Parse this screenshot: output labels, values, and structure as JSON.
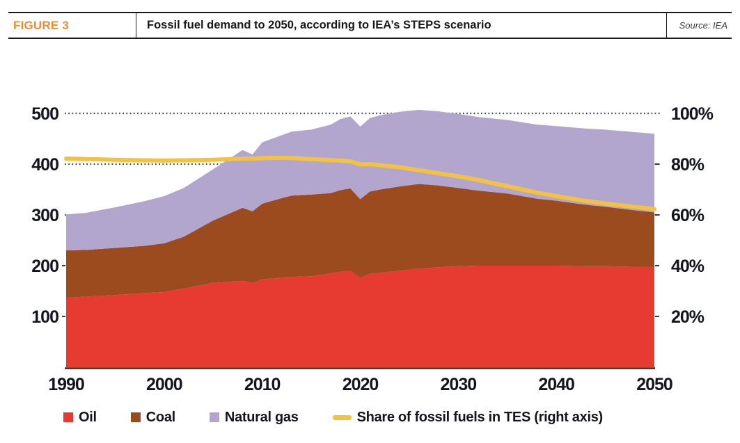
{
  "header": {
    "figure_label": "FIGURE 3",
    "title": "Fossil fuel demand to 2050, according to IEA’s STEPS scenario",
    "source": "Source: IEA"
  },
  "colors": {
    "oil": "#E73A31",
    "coal": "#9C4B1E",
    "gas": "#B3A6CE",
    "share_line": "#F4C243",
    "figure_label": "#F08A2E",
    "grid": "#47474F",
    "axis_text": "#15151F",
    "baseline": "#4A1B10",
    "tick": "#3A3A3A"
  },
  "legend": [
    {
      "label": "Oil",
      "color_key": "oil",
      "swatch": "square"
    },
    {
      "label": "Coal",
      "color_key": "coal",
      "swatch": "square"
    },
    {
      "label": "Natural gas",
      "color_key": "gas",
      "swatch": "square"
    },
    {
      "label": "Share of fossil fuels in TES (right axis)",
      "color_key": "share_line",
      "swatch": "line"
    }
  ],
  "chart_data": {
    "type": "area",
    "stacked": true,
    "title": "Fossil fuel demand to 2050, according to IEA's STEPS scenario",
    "xlabel": "",
    "ylabel": "",
    "x_min": 1990,
    "x_max": 2050,
    "x": [
      1990,
      1992,
      1995,
      1998,
      2000,
      2002,
      2005,
      2008,
      2009,
      2010,
      2012,
      2013,
      2015,
      2017,
      2018,
      2019,
      2020,
      2021,
      2022,
      2024,
      2026,
      2028,
      2030,
      2032,
      2035,
      2038,
      2040,
      2043,
      2045,
      2048,
      2050
    ],
    "series": [
      {
        "name": "Oil",
        "color_key": "oil",
        "values": [
          137,
          139,
          142,
          146,
          148,
          155,
          166,
          170,
          166,
          173,
          176,
          178,
          179,
          185,
          188,
          190,
          176,
          184,
          186,
          190,
          194,
          197,
          199,
          200,
          200,
          200,
          200,
          199,
          199,
          198,
          198
        ]
      },
      {
        "name": "Coal",
        "color_key": "coal",
        "values": [
          93,
          92,
          93,
          93,
          96,
          102,
          123,
          144,
          141,
          149,
          157,
          160,
          161,
          158,
          161,
          162,
          155,
          162,
          164,
          166,
          167,
          161,
          154,
          148,
          142,
          132,
          128,
          121,
          117,
          111,
          107
        ]
      },
      {
        "name": "Natural gas",
        "color_key": "gas",
        "values": [
          71,
          73,
          80,
          88,
          93,
          96,
          101,
          114,
          112,
          121,
          124,
          126,
          128,
          135,
          140,
          142,
          143,
          145,
          146,
          147,
          146,
          146,
          146,
          145,
          145,
          146,
          147,
          150,
          152,
          154,
          155
        ]
      }
    ],
    "line_series": {
      "name": "Share of fossil fuels in TES (right axis)",
      "axis": "right",
      "color_key": "share_line",
      "values": [
        82.2,
        82.0,
        81.7,
        81.5,
        81.4,
        81.5,
        81.7,
        82.2,
        82.2,
        82.4,
        82.5,
        82.4,
        82.0,
        81.6,
        81.4,
        81.1,
        79.9,
        80.0,
        79.6,
        78.8,
        77.6,
        76.4,
        75.2,
        73.8,
        71.3,
        68.8,
        67.4,
        65.5,
        64.5,
        63.2,
        62.3
      ]
    },
    "left_axis": {
      "ticks": [
        100,
        200,
        300,
        400,
        500
      ],
      "range": [
        0,
        520
      ],
      "gridlines_at": [
        300,
        400,
        500
      ],
      "minor_ticks": [
        100,
        200
      ]
    },
    "right_axis": {
      "ticks": [
        {
          "v": 20,
          "label": "20%"
        },
        {
          "v": 40,
          "label": "40%"
        },
        {
          "v": 60,
          "label": "60%"
        },
        {
          "v": 80,
          "label": "80%"
        },
        {
          "v": 100,
          "label": "100%"
        }
      ],
      "range": [
        0,
        104
      ],
      "minor_ticks": [
        20,
        40,
        60,
        80
      ]
    },
    "x_ticks": [
      1990,
      2000,
      2010,
      2020,
      2030,
      2040,
      2050
    ],
    "grid": "dotted",
    "legend_position": "bottom"
  }
}
